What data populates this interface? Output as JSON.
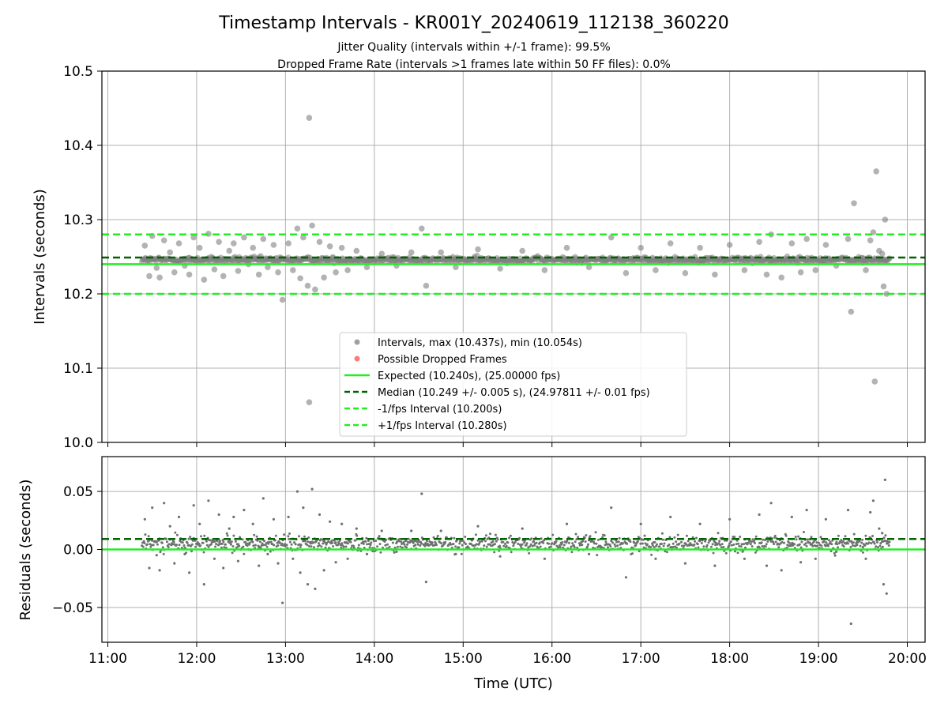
{
  "figure": {
    "title": "Timestamp Intervals - KR001Y_20240619_112138_360220",
    "subtitle_1": "Jitter Quality (intervals within +/-1 frame): 99.5%",
    "subtitle_2": "Dropped Frame Rate (intervals >1 frames late within 50 FF files): 0.0%"
  },
  "chart_data": [
    {
      "type": "scatter",
      "panel": "intervals",
      "ylabel": "Intervals (seconds)",
      "ylim": [
        10.0,
        10.5
      ],
      "yticks": [
        "10.0",
        "10.1",
        "10.2",
        "10.3",
        "10.4",
        "10.5"
      ],
      "xlim": [
        "10:56",
        "20:12"
      ],
      "grid": true,
      "legend_position": "lower center",
      "legend": [
        {
          "label": "Intervals, max (10.437s), min (10.054s)",
          "kind": "marker",
          "color": "#808080"
        },
        {
          "label": "Possible Dropped Frames",
          "kind": "marker",
          "color": "#ff4d4d"
        },
        {
          "label": "Expected (10.240s), (25.00000 fps)",
          "kind": "solid",
          "color": "#22ee22"
        },
        {
          "label": "Median (10.249 +/- 0.005 s), (24.97811 +/- 0.01 fps)",
          "kind": "dashed",
          "color": "#006400"
        },
        {
          "label": "-1/fps Interval (10.200s)",
          "kind": "dashed",
          "color": "#22ee22"
        },
        {
          "label": "+1/fps Interval (10.280s)",
          "kind": "dashed",
          "color": "#22ee22"
        }
      ],
      "reference_lines": {
        "expected": 10.24,
        "median": 10.249,
        "minus_one_fps": 10.2,
        "plus_one_fps": 10.28
      },
      "series": [
        {
          "name": "Intervals, max (10.437s), min (10.054s)",
          "x_range": [
            "11:23",
            "19:48"
          ],
          "band_center": 10.246,
          "band_halfwidth": 0.004,
          "sampled_points": [
            [
              "11:25",
              10.265
            ],
            [
              "11:28",
              10.224
            ],
            [
              "11:30",
              10.278
            ],
            [
              "11:33",
              10.235
            ],
            [
              "11:35",
              10.222
            ],
            [
              "11:38",
              10.272
            ],
            [
              "11:42",
              10.256
            ],
            [
              "11:45",
              10.229
            ],
            [
              "11:48",
              10.268
            ],
            [
              "11:52",
              10.238
            ],
            [
              "11:55",
              10.226
            ],
            [
              "11:58",
              10.276
            ],
            [
              "12:02",
              10.262
            ],
            [
              "12:05",
              10.219
            ],
            [
              "12:08",
              10.281
            ],
            [
              "12:12",
              10.233
            ],
            [
              "12:15",
              10.27
            ],
            [
              "12:18",
              10.224
            ],
            [
              "12:22",
              10.258
            ],
            [
              "12:25",
              10.268
            ],
            [
              "12:28",
              10.231
            ],
            [
              "12:32",
              10.276
            ],
            [
              "12:35",
              10.24
            ],
            [
              "12:38",
              10.262
            ],
            [
              "12:42",
              10.226
            ],
            [
              "12:45",
              10.274
            ],
            [
              "12:48",
              10.236
            ],
            [
              "12:52",
              10.266
            ],
            [
              "12:55",
              10.229
            ],
            [
              "12:58",
              10.192
            ],
            [
              "13:02",
              10.268
            ],
            [
              "13:05",
              10.232
            ],
            [
              "13:08",
              10.288
            ],
            [
              "13:10",
              10.221
            ],
            [
              "13:12",
              10.276
            ],
            [
              "13:15",
              10.211
            ],
            [
              "13:18",
              10.292
            ],
            [
              "13:20",
              10.206
            ],
            [
              "13:23",
              10.27
            ],
            [
              "13:26",
              10.222
            ],
            [
              "13:30",
              10.264
            ],
            [
              "13:34",
              10.229
            ],
            [
              "13:38",
              10.262
            ],
            [
              "13:42",
              10.232
            ],
            [
              "13:48",
              10.258
            ],
            [
              "13:55",
              10.236
            ],
            [
              "14:05",
              10.254
            ],
            [
              "14:15",
              10.238
            ],
            [
              "14:25",
              10.256
            ],
            [
              "14:32",
              10.288
            ],
            [
              "14:35",
              10.211
            ],
            [
              "14:45",
              10.256
            ],
            [
              "14:55",
              10.236
            ],
            [
              "15:10",
              10.26
            ],
            [
              "15:25",
              10.234
            ],
            [
              "15:40",
              10.258
            ],
            [
              "15:55",
              10.232
            ],
            [
              "16:10",
              10.262
            ],
            [
              "16:25",
              10.236
            ],
            [
              "16:40",
              10.276
            ],
            [
              "16:50",
              10.228
            ],
            [
              "17:00",
              10.262
            ],
            [
              "17:10",
              10.232
            ],
            [
              "17:20",
              10.268
            ],
            [
              "17:30",
              10.228
            ],
            [
              "17:40",
              10.262
            ],
            [
              "17:50",
              10.226
            ],
            [
              "18:00",
              10.266
            ],
            [
              "18:10",
              10.232
            ],
            [
              "18:20",
              10.27
            ],
            [
              "18:25",
              10.226
            ],
            [
              "18:28",
              10.28
            ],
            [
              "18:35",
              10.222
            ],
            [
              "18:42",
              10.268
            ],
            [
              "18:48",
              10.229
            ],
            [
              "18:52",
              10.274
            ],
            [
              "18:58",
              10.232
            ],
            [
              "19:05",
              10.266
            ],
            [
              "19:12",
              10.238
            ],
            [
              "19:20",
              10.274
            ],
            [
              "19:22",
              10.176
            ],
            [
              "19:24",
              10.322
            ],
            [
              "19:26",
              10.244
            ],
            [
              "19:30",
              10.242
            ],
            [
              "19:32",
              10.232
            ],
            [
              "19:35",
              10.272
            ],
            [
              "19:37",
              10.283
            ],
            [
              "19:38",
              10.082
            ],
            [
              "19:39",
              10.365
            ],
            [
              "19:41",
              10.258
            ],
            [
              "19:43",
              10.254
            ],
            [
              "19:44",
              10.21
            ],
            [
              "19:45",
              10.3
            ],
            [
              "19:46",
              10.2
            ]
          ],
          "outliers": [
            [
              "13:16",
              10.437
            ],
            [
              "13:16",
              10.054
            ]
          ]
        }
      ]
    },
    {
      "type": "scatter",
      "panel": "residuals",
      "xlabel": "Time (UTC)",
      "ylabel": "Residuals (seconds)",
      "ylim": [
        -0.08,
        0.08
      ],
      "yticks": [
        "−0.05",
        "0.00",
        "0.05"
      ],
      "xticks": [
        "11:00",
        "12:00",
        "13:00",
        "14:00",
        "15:00",
        "16:00",
        "17:00",
        "18:00",
        "19:00",
        "20:00"
      ],
      "xlim": [
        "10:56",
        "20:12"
      ],
      "grid": true,
      "reference_lines": {
        "zero": 0.0,
        "median": 0.009
      },
      "series": [
        {
          "name": "Residuals",
          "x_range": [
            "11:23",
            "19:48"
          ],
          "band_center": 0.005,
          "band_halfwidth": 0.006,
          "sampled_points": [
            [
              "11:25",
              0.026
            ],
            [
              "11:28",
              -0.016
            ],
            [
              "11:30",
              0.036
            ],
            [
              "11:33",
              -0.005
            ],
            [
              "11:35",
              -0.018
            ],
            [
              "11:38",
              0.04
            ],
            [
              "11:42",
              0.02
            ],
            [
              "11:45",
              -0.012
            ],
            [
              "11:48",
              0.028
            ],
            [
              "11:52",
              -0.004
            ],
            [
              "11:55",
              -0.02
            ],
            [
              "11:58",
              0.038
            ],
            [
              "12:02",
              0.022
            ],
            [
              "12:05",
              -0.03
            ],
            [
              "12:08",
              0.042
            ],
            [
              "12:12",
              -0.008
            ],
            [
              "12:15",
              0.03
            ],
            [
              "12:18",
              -0.016
            ],
            [
              "12:22",
              0.018
            ],
            [
              "12:25",
              0.028
            ],
            [
              "12:28",
              -0.01
            ],
            [
              "12:32",
              0.034
            ],
            [
              "12:35",
              0.0
            ],
            [
              "12:38",
              0.022
            ],
            [
              "12:42",
              -0.014
            ],
            [
              "12:45",
              0.044
            ],
            [
              "12:48",
              -0.004
            ],
            [
              "12:52",
              0.026
            ],
            [
              "12:55",
              -0.012
            ],
            [
              "12:58",
              -0.046
            ],
            [
              "13:02",
              0.028
            ],
            [
              "13:05",
              -0.008
            ],
            [
              "13:08",
              0.05
            ],
            [
              "13:10",
              -0.02
            ],
            [
              "13:12",
              0.036
            ],
            [
              "13:15",
              -0.03
            ],
            [
              "13:18",
              0.052
            ],
            [
              "13:20",
              -0.034
            ],
            [
              "13:23",
              0.03
            ],
            [
              "13:26",
              -0.018
            ],
            [
              "13:30",
              0.024
            ],
            [
              "13:34",
              -0.011
            ],
            [
              "13:38",
              0.022
            ],
            [
              "13:42",
              -0.008
            ],
            [
              "13:48",
              0.018
            ],
            [
              "13:55",
              -0.004
            ],
            [
              "14:05",
              0.016
            ],
            [
              "14:15",
              -0.002
            ],
            [
              "14:25",
              0.016
            ],
            [
              "14:32",
              0.048
            ],
            [
              "14:35",
              -0.028
            ],
            [
              "14:45",
              0.016
            ],
            [
              "14:55",
              -0.004
            ],
            [
              "15:10",
              0.02
            ],
            [
              "15:25",
              -0.006
            ],
            [
              "15:40",
              0.018
            ],
            [
              "15:55",
              -0.008
            ],
            [
              "16:10",
              0.022
            ],
            [
              "16:25",
              -0.004
            ],
            [
              "16:40",
              0.036
            ],
            [
              "16:50",
              -0.024
            ],
            [
              "17:00",
              0.022
            ],
            [
              "17:10",
              -0.008
            ],
            [
              "17:20",
              0.028
            ],
            [
              "17:30",
              -0.012
            ],
            [
              "17:40",
              0.022
            ],
            [
              "17:50",
              -0.014
            ],
            [
              "18:00",
              0.026
            ],
            [
              "18:10",
              -0.008
            ],
            [
              "18:20",
              0.03
            ],
            [
              "18:25",
              -0.014
            ],
            [
              "18:28",
              0.04
            ],
            [
              "18:35",
              -0.018
            ],
            [
              "18:42",
              0.028
            ],
            [
              "18:48",
              -0.011
            ],
            [
              "18:52",
              0.034
            ],
            [
              "18:58",
              -0.008
            ],
            [
              "19:05",
              0.026
            ],
            [
              "19:12",
              -0.002
            ],
            [
              "19:20",
              0.034
            ],
            [
              "19:22",
              -0.064
            ],
            [
              "19:26",
              0.004
            ],
            [
              "19:30",
              0.002
            ],
            [
              "19:32",
              -0.008
            ],
            [
              "19:35",
              0.032
            ],
            [
              "19:37",
              0.042
            ],
            [
              "19:41",
              0.018
            ],
            [
              "19:43",
              0.014
            ],
            [
              "19:44",
              -0.03
            ],
            [
              "19:45",
              0.06
            ],
            [
              "19:46",
              -0.038
            ]
          ]
        }
      ]
    }
  ]
}
